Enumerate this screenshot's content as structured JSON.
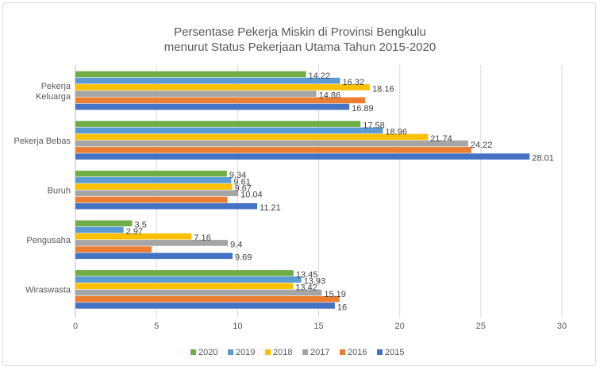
{
  "chart_data": {
    "type": "bar",
    "orientation": "horizontal",
    "title": [
      "Persentase Pekerja Miskin di Provinsi Bengkulu",
      "menurut Status Pekerjaan Utama Tahun 2015-2020"
    ],
    "categories": [
      "Pekerja Keluarga",
      "Pekerja Bebas",
      "Buruh",
      "Pengusaha",
      "Wiraswasta"
    ],
    "category_labels": [
      [
        "Pekerja",
        "Keluarga"
      ],
      [
        "Pekerja Bebas"
      ],
      [
        "Buruh"
      ],
      [
        "Pengusaha"
      ],
      [
        "Wiraswasta"
      ]
    ],
    "series": [
      {
        "name": "2020",
        "color": "#70ad47",
        "values": [
          14.22,
          17.58,
          9.34,
          3.5,
          13.45
        ],
        "labels": [
          "14.22",
          "17.58",
          "9.34",
          "3.5",
          "13.45"
        ]
      },
      {
        "name": "2019",
        "color": "#5b9bd5",
        "values": [
          16.32,
          18.96,
          9.61,
          2.97,
          13.93
        ],
        "labels": [
          "16.32",
          "18.96",
          "9.61",
          "2.97",
          "13.93"
        ]
      },
      {
        "name": "2018",
        "color": "#ffc000",
        "values": [
          18.16,
          21.74,
          9.67,
          7.16,
          13.42
        ],
        "labels": [
          "18.16",
          "21.74",
          "9.67",
          "7.16",
          "13.42"
        ]
      },
      {
        "name": "2017",
        "color": "#a5a5a5",
        "values": [
          14.86,
          24.22,
          10.04,
          9.4,
          15.19
        ],
        "labels": [
          "14.86",
          "24.22",
          "10.04",
          "9.4",
          "15.19"
        ]
      },
      {
        "name": "2016",
        "color": "#ed7d31",
        "values": [
          17.87,
          24.42,
          9.38,
          4.7,
          16.28
        ],
        "labels": [
          "",
          "",
          "",
          "",
          ""
        ]
      },
      {
        "name": "2015",
        "color": "#4472c4",
        "values": [
          16.89,
          28.01,
          11.21,
          9.69,
          16
        ],
        "labels": [
          "16.89",
          "28.01",
          "11.21",
          "9.69",
          "16"
        ]
      }
    ],
    "xlim": [
      0,
      30
    ],
    "xticks": [
      "0",
      "5",
      "10",
      "15",
      "20",
      "25",
      "30"
    ],
    "grid": true,
    "legend_placement": "bottom",
    "legend_order": [
      "2020",
      "2019",
      "2018",
      "2017",
      "2016",
      "2015"
    ]
  }
}
